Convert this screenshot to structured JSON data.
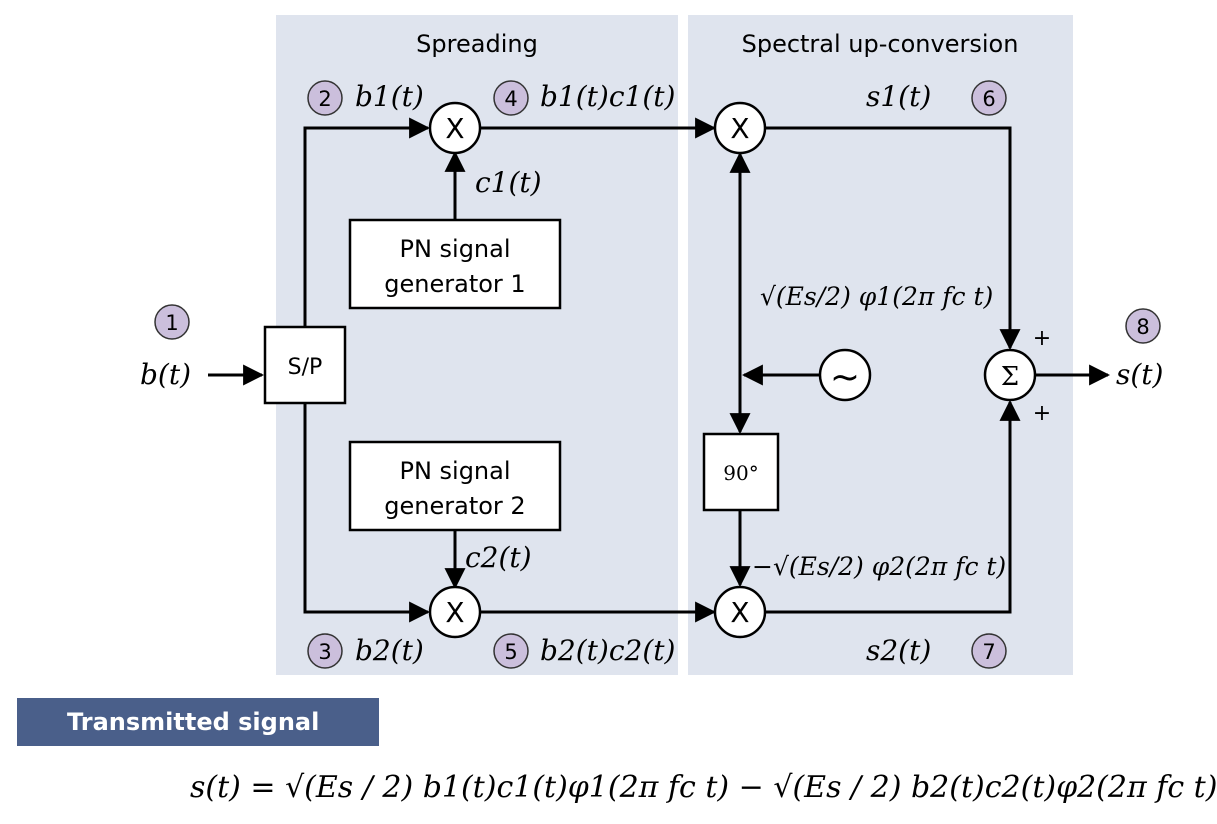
{
  "sections": {
    "spreading": "Spreading",
    "upconversion": "Spectral up-conversion"
  },
  "nodes": [
    "1",
    "2",
    "3",
    "4",
    "5",
    "6",
    "7",
    "8"
  ],
  "signals": {
    "b": "b(t)",
    "b1": "b1(t)",
    "b2": "b2(t)",
    "b1c1": "b1(t)c1(t)",
    "b2c2": "b2(t)c2(t)",
    "c1": "c1(t)",
    "c2": "c2(t)",
    "s1": "s1(t)",
    "s2": "s2(t)",
    "s": "s(t)",
    "carrier1": "√(Es/2) φ1(2π fc t)",
    "carrier2": "−√(Es/2) φ2(2π fc t)"
  },
  "blocks": {
    "sp": "S/P",
    "pn1_line1": "PN signal",
    "pn1_line2": "generator 1",
    "pn2_line1": "PN signal",
    "pn2_line2": "generator 2",
    "phase": "90°",
    "mult": "X",
    "sum": "Σ",
    "osc": "~",
    "plus": "+"
  },
  "caption": "Transmitted signal",
  "formula": "s(t) = √(Es / 2) b1(t)c1(t)φ1(2π fc t) − √(Es / 2) b2(t)c2(t)φ2(2π fc t)"
}
